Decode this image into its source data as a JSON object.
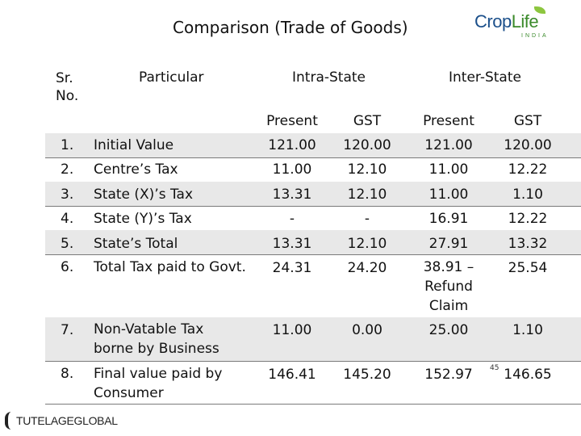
{
  "title": "Comparison (Trade of Goods)",
  "logo": {
    "part1": "Crop",
    "part2": "Life",
    "sub": "INDIA"
  },
  "headers": {
    "sr": "Sr. No.",
    "particular": "Particular",
    "intra": "Intra-State",
    "inter": "Inter-State",
    "present": "Present",
    "gst": "GST"
  },
  "rows": [
    {
      "sr": "1.",
      "particular": "Initial Value",
      "intra_present": "121.00",
      "intra_gst": "120.00",
      "inter_present": "121.00",
      "inter_gst": "120.00"
    },
    {
      "sr": "2.",
      "particular": "Centre’s Tax",
      "intra_present": "11.00",
      "intra_gst": "12.10",
      "inter_present": "11.00",
      "inter_gst": "12.22"
    },
    {
      "sr": "3.",
      "particular": "State (X)’s Tax",
      "intra_present": "13.31",
      "intra_gst": "12.10",
      "inter_present": "11.00",
      "inter_gst": "1.10"
    },
    {
      "sr": "4.",
      "particular": "State (Y)’s Tax",
      "intra_present": "-",
      "intra_gst": "-",
      "inter_present": "16.91",
      "inter_gst": "12.22"
    },
    {
      "sr": "5.",
      "particular": "State’s Total",
      "intra_present": "13.31",
      "intra_gst": "12.10",
      "inter_present": "27.91",
      "inter_gst": "13.32"
    },
    {
      "sr": "6.",
      "particular": "Total Tax paid to Govt.",
      "intra_present": "24.31",
      "intra_gst": "24.20",
      "inter_present": "38.91 – Refund Claim",
      "inter_gst": "25.54"
    },
    {
      "sr": "7.",
      "particular": "Non-Vatable Tax borne by Business",
      "intra_present": "11.00",
      "intra_gst": "0.00",
      "inter_present": "25.00",
      "inter_gst": "1.10"
    },
    {
      "sr": "8.",
      "particular": "Final value paid by Consumer",
      "intra_present": "146.41",
      "intra_gst": "145.20",
      "inter_present": "152.97",
      "inter_gst": "146.65"
    }
  ],
  "page_number": "45",
  "footer": "TUTELAGEGLOBAL"
}
